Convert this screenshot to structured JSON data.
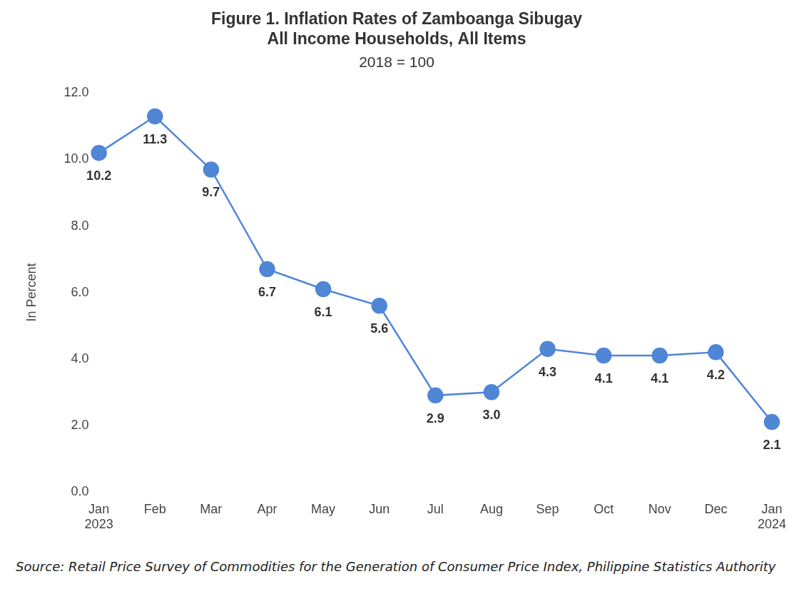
{
  "chart_data": {
    "type": "line",
    "title": [
      "Figure 1. Inflation Rates of Zamboanga Sibugay",
      "All Income Households, All Items"
    ],
    "subtitle": "2018 = 100",
    "y_label": "In Percent",
    "categories": [
      "Jan 2023",
      "Feb",
      "Mar",
      "Apr",
      "May",
      "Jun",
      "Jul",
      "Aug",
      "Sep",
      "Oct",
      "Nov",
      "Dec",
      "Jan 2024"
    ],
    "values": [
      10.2,
      11.3,
      9.7,
      6.7,
      6.1,
      5.6,
      2.9,
      3.0,
      4.3,
      4.1,
      4.1,
      4.2,
      2.1
    ],
    "value_labels": [
      "10.2",
      "11.3",
      "9.7",
      "6.7",
      "6.1",
      "5.6",
      "2.9",
      "3.0",
      "4.3",
      "4.1",
      "4.1",
      "4.2",
      "2.1"
    ],
    "data_labels": true,
    "color": "#4f86d6",
    "marker": "circle",
    "line_style": "solid",
    "ylim": [
      0,
      12
    ],
    "yticks": [
      {
        "value": 0,
        "label": "0.0"
      },
      {
        "value": 2,
        "label": "2.0"
      },
      {
        "value": 4,
        "label": "4.0"
      },
      {
        "value": 6,
        "label": "6.0"
      },
      {
        "value": 8,
        "label": "8.0"
      },
      {
        "value": 10,
        "label": "10.0"
      },
      {
        "value": 12,
        "label": "12.0"
      }
    ],
    "grid": false,
    "source": "Source: Retail Price Survey of Commodities for the Generation of Consumer Price Index, Philippine Statistics Authority"
  }
}
